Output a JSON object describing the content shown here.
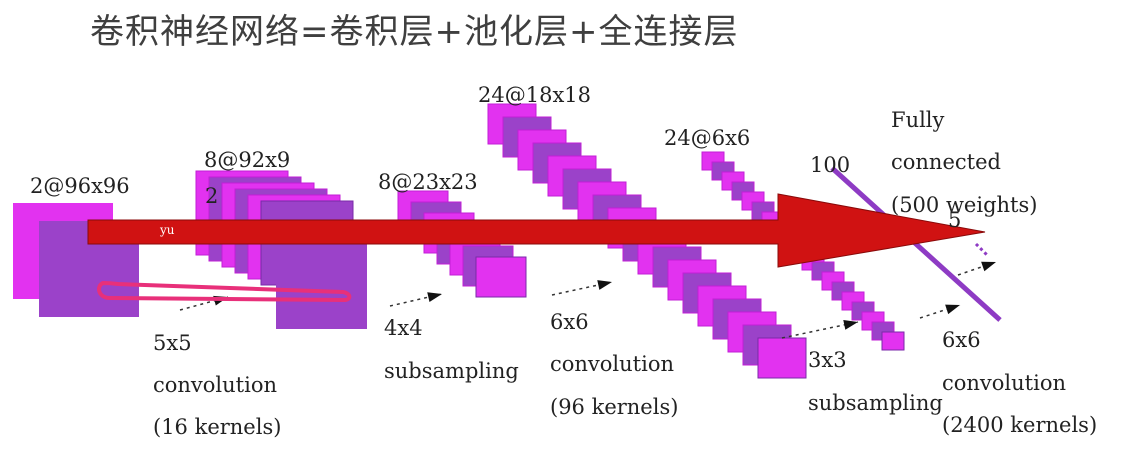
{
  "title": "卷积神经网络=卷积层+池化层+全连接层",
  "colors": {
    "magenta": "#e232f0",
    "purple": "#9b42c9",
    "arrow_red": "#d01212",
    "loop_pink": "#e8307a",
    "connector": "#8e3bc4",
    "text": "#222222",
    "title": "#3f3f3f"
  },
  "layers": [
    {
      "id": "input",
      "shape": "2@96x96"
    },
    {
      "id": "conv1",
      "shape": "8@92x9",
      "extra": "2"
    },
    {
      "id": "pool1",
      "shape": "8@23x23"
    },
    {
      "id": "conv2",
      "shape": "24@18x18"
    },
    {
      "id": "pool2",
      "shape": "24@6x6"
    },
    {
      "id": "fc",
      "shape": "100",
      "extra": "5"
    }
  ],
  "operations": {
    "op1": {
      "line1": "5x5",
      "line2": "convolution",
      "line3": "(16 kernels)"
    },
    "op2": {
      "line1": "4x4",
      "line2": "subsampling"
    },
    "op3": {
      "line1": "6x6",
      "line2": "convolution",
      "line3": "(96 kernels)"
    },
    "op4": {
      "line1": "3x3",
      "line2": "subsampling"
    },
    "op5": {
      "line1": "6x6",
      "line2": "convolution",
      "line3": "(2400 kernels)"
    },
    "fully": {
      "line1": "Fully",
      "line2": "connected",
      "line3": "(500 weights)"
    }
  },
  "arrow_label": "yu"
}
